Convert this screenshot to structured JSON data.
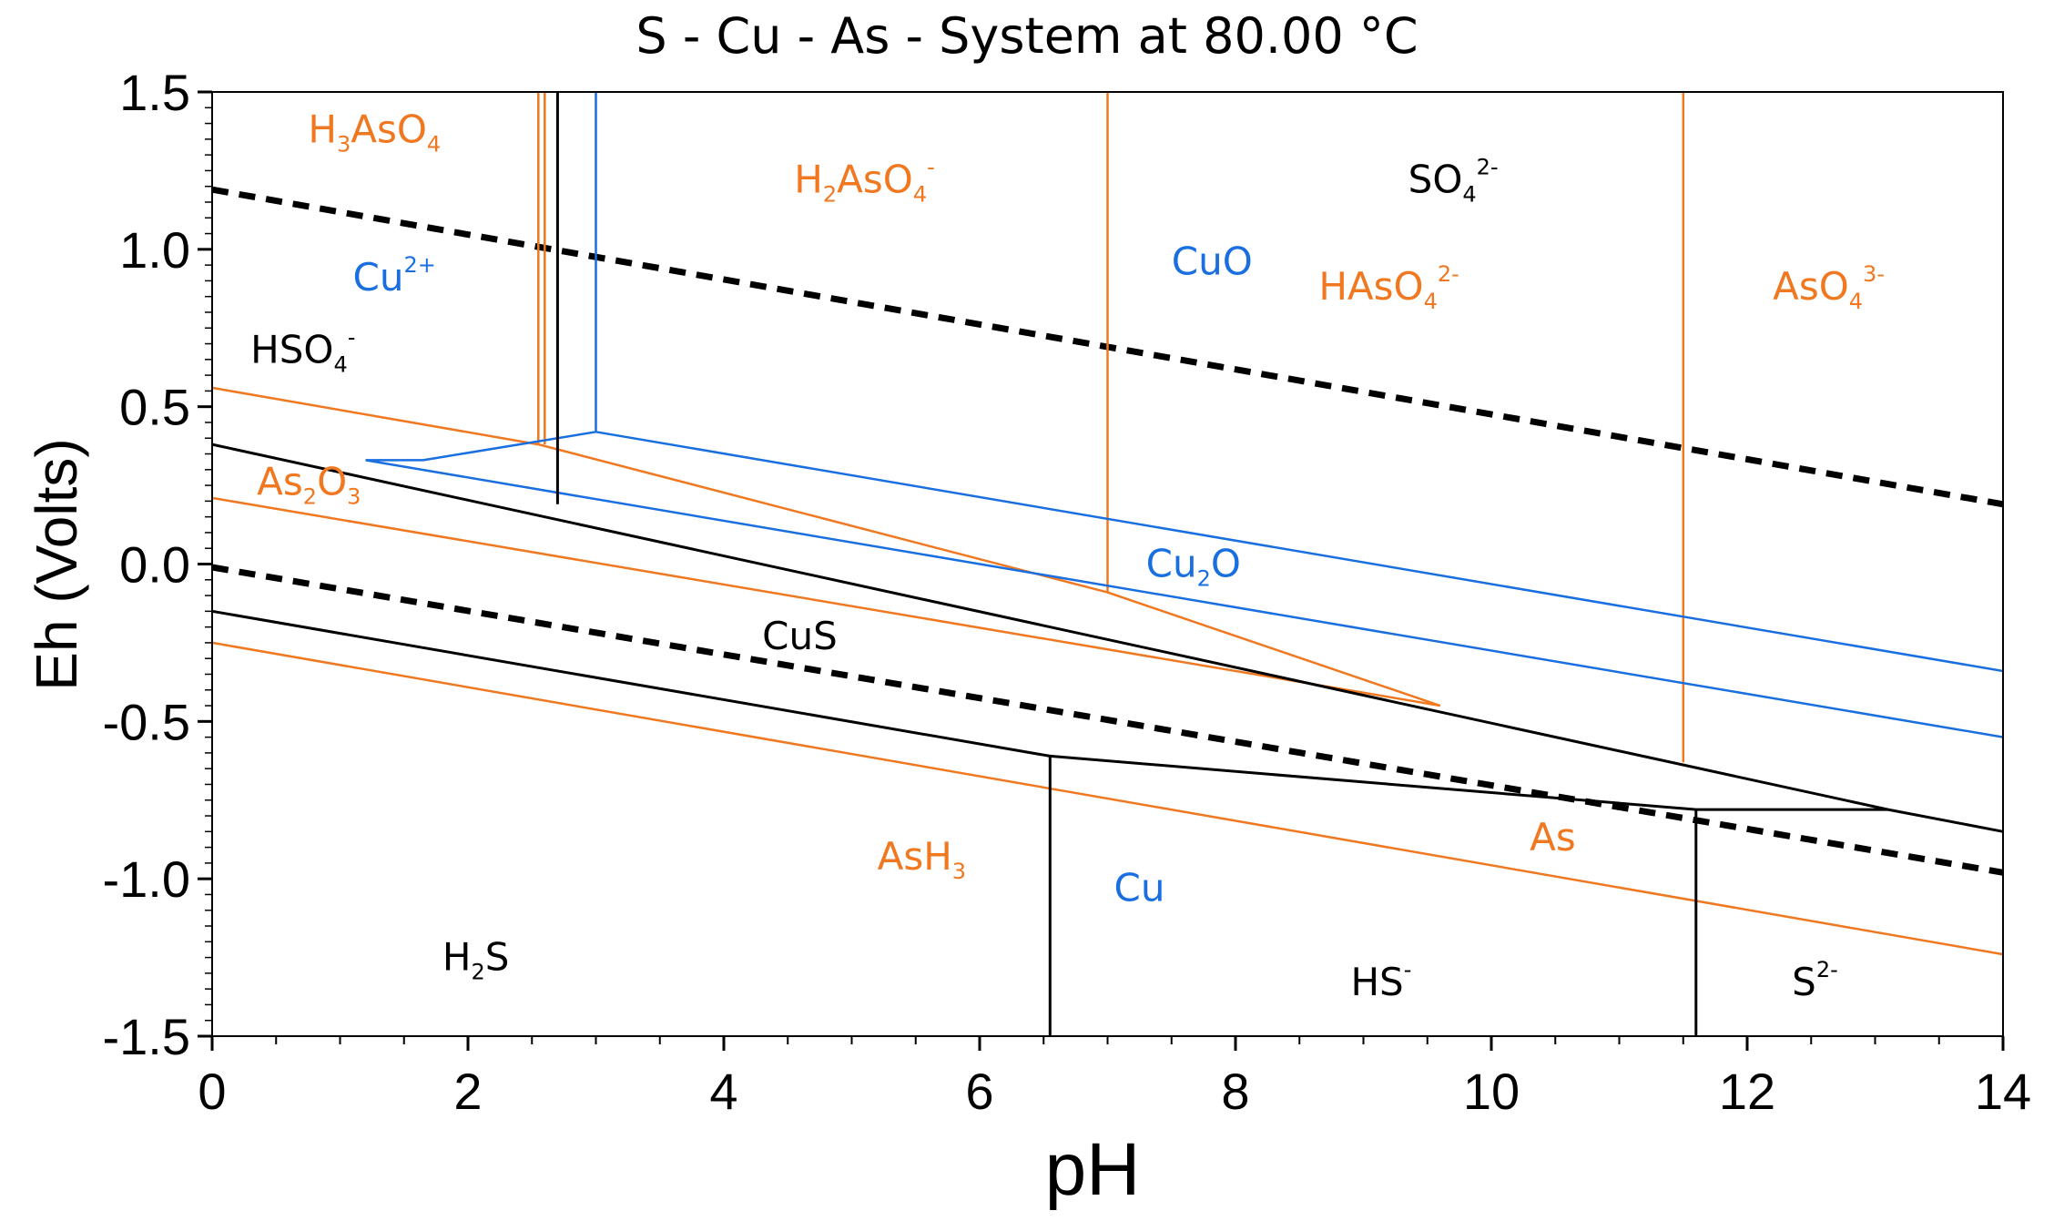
{
  "chart_data": {
    "type": "line",
    "title": "S - Cu - As - System at 80.00 °C",
    "xlabel": "pH",
    "ylabel": "Eh (Volts)",
    "xlim": [
      0,
      14
    ],
    "ylim": [
      -1.5,
      1.5
    ],
    "x_ticks": [
      0,
      2,
      4,
      6,
      8,
      10,
      12,
      14
    ],
    "y_ticks": [
      -1.5,
      -1.0,
      -0.5,
      0.0,
      0.5,
      1.0,
      1.5
    ],
    "x_tick_labels": [
      "0",
      "2",
      "4",
      "6",
      "8",
      "10",
      "12",
      "14"
    ],
    "y_tick_labels": [
      "-1.5",
      "-1.0",
      "-0.5",
      "0.0",
      "0.5",
      "1.0",
      "1.5"
    ],
    "colors": {
      "arsenic": "#f07820",
      "copper": "#1a6fe0",
      "sulfur": "#000000",
      "water": "#000000"
    },
    "series": [
      {
        "name": "water-upper",
        "group": "water",
        "style": "dashed",
        "points": [
          [
            0,
            1.19
          ],
          [
            14,
            0.19
          ]
        ]
      },
      {
        "name": "water-lower",
        "group": "water",
        "style": "dashed",
        "points": [
          [
            0,
            -0.01
          ],
          [
            14,
            -0.98
          ]
        ]
      },
      {
        "name": "as-h3aso4-h2aso4-a",
        "group": "arsenic",
        "points": [
          [
            2.55,
            1.5
          ],
          [
            2.55,
            0.38
          ]
        ]
      },
      {
        "name": "as-h3aso4-h2aso4-b",
        "group": "arsenic",
        "points": [
          [
            2.6,
            1.5
          ],
          [
            2.6,
            0.38
          ]
        ]
      },
      {
        "name": "as-h2aso4-haso4",
        "group": "arsenic",
        "points": [
          [
            7.0,
            1.5
          ],
          [
            7.0,
            -0.09
          ]
        ]
      },
      {
        "name": "as-haso4-aso4",
        "group": "arsenic",
        "points": [
          [
            11.5,
            1.5
          ],
          [
            11.5,
            -0.63
          ]
        ]
      },
      {
        "name": "as-as5-as2o3",
        "group": "arsenic",
        "points": [
          [
            0,
            0.56
          ],
          [
            2.55,
            0.38
          ],
          [
            7.0,
            -0.09
          ],
          [
            9.6,
            -0.45
          ]
        ]
      },
      {
        "name": "as-as2o3-as",
        "group": "arsenic",
        "points": [
          [
            0,
            0.21
          ],
          [
            9.6,
            -0.45
          ]
        ]
      },
      {
        "name": "as-as-ash3",
        "group": "arsenic",
        "points": [
          [
            0,
            -0.25
          ],
          [
            14,
            -1.24
          ]
        ]
      },
      {
        "name": "cu-cu2-cuo",
        "group": "copper",
        "points": [
          [
            3.0,
            1.5
          ],
          [
            3.0,
            0.42
          ]
        ]
      },
      {
        "name": "cu-cu2-lower",
        "group": "copper",
        "points": [
          [
            1.2,
            0.33
          ],
          [
            1.65,
            0.33
          ],
          [
            3.0,
            0.42
          ]
        ]
      },
      {
        "name": "cu-cuo-cu2o",
        "group": "copper",
        "points": [
          [
            3.0,
            0.42
          ],
          [
            14,
            -0.34
          ]
        ]
      },
      {
        "name": "cu-cu2o-lower",
        "group": "copper",
        "points": [
          [
            1.2,
            0.33
          ],
          [
            14,
            -0.55
          ]
        ]
      },
      {
        "name": "s-hso4-so4",
        "group": "sulfur",
        "points": [
          [
            2.7,
            1.5
          ],
          [
            2.7,
            0.19
          ]
        ]
      },
      {
        "name": "s-sulfate-cus",
        "group": "sulfur",
        "points": [
          [
            0,
            0.38
          ],
          [
            13.1,
            -0.78
          ],
          [
            14,
            -0.85
          ]
        ]
      },
      {
        "name": "s-cus-cu",
        "group": "sulfur",
        "points": [
          [
            0,
            -0.15
          ],
          [
            6.55,
            -0.61
          ],
          [
            11.6,
            -0.78
          ],
          [
            13.1,
            -0.78
          ]
        ]
      },
      {
        "name": "s-h2s-hs",
        "group": "sulfur",
        "points": [
          [
            6.55,
            -0.61
          ],
          [
            6.55,
            -1.5
          ]
        ]
      },
      {
        "name": "s-hs-s2",
        "group": "sulfur",
        "points": [
          [
            11.6,
            -0.78
          ],
          [
            11.6,
            -1.5
          ]
        ]
      }
    ],
    "labels": [
      {
        "base": "H",
        "sub": "3",
        "mid": "AsO",
        "sub2": "4",
        "sup": "",
        "group": "arsenic",
        "pos": [
          0.75,
          1.34
        ]
      },
      {
        "base": "H",
        "sub": "2",
        "mid": "AsO",
        "sub2": "4",
        "sup": "-",
        "group": "arsenic",
        "pos": [
          4.55,
          1.18
        ]
      },
      {
        "base": "SO",
        "sub": "4",
        "mid": "",
        "sub2": "",
        "sup": "2-",
        "group": "sulfur",
        "pos": [
          9.35,
          1.18
        ]
      },
      {
        "base": "Cu",
        "sub": "",
        "mid": "",
        "sub2": "",
        "sup": "2+",
        "group": "copper",
        "pos": [
          1.1,
          0.87
        ]
      },
      {
        "base": "CuO",
        "sub": "",
        "mid": "",
        "sub2": "",
        "sup": "",
        "group": "copper",
        "pos": [
          7.5,
          0.92
        ]
      },
      {
        "base": "HAsO",
        "sub": "4",
        "mid": "",
        "sub2": "",
        "sup": "2-",
        "group": "arsenic",
        "pos": [
          8.65,
          0.84
        ]
      },
      {
        "base": "AsO",
        "sub": "4",
        "mid": "",
        "sub2": "",
        "sup": "3-",
        "group": "arsenic",
        "pos": [
          12.2,
          0.84
        ]
      },
      {
        "base": "HSO",
        "sub": "4",
        "mid": "",
        "sub2": "",
        "sup": "-",
        "group": "sulfur",
        "pos": [
          0.3,
          0.64
        ]
      },
      {
        "base": "As",
        "sub": "2",
        "mid": "O",
        "sub2": "3",
        "sup": "",
        "group": "arsenic",
        "pos": [
          0.35,
          0.22
        ]
      },
      {
        "base": "Cu",
        "sub": "2",
        "mid": "O",
        "sub2": "",
        "sup": "",
        "group": "copper",
        "pos": [
          7.3,
          -0.04
        ]
      },
      {
        "base": "CuS",
        "sub": "",
        "mid": "",
        "sub2": "",
        "sup": "",
        "group": "sulfur",
        "pos": [
          4.3,
          -0.27
        ]
      },
      {
        "base": "AsH",
        "sub": "3",
        "mid": "",
        "sub2": "",
        "sup": "",
        "group": "arsenic",
        "pos": [
          5.2,
          -0.97
        ]
      },
      {
        "base": "As",
        "sub": "",
        "mid": "",
        "sub2": "",
        "sup": "",
        "group": "arsenic",
        "pos": [
          10.3,
          -0.91
        ]
      },
      {
        "base": "Cu",
        "sub": "",
        "mid": "",
        "sub2": "",
        "sup": "",
        "group": "copper",
        "pos": [
          7.05,
          -1.07
        ]
      },
      {
        "base": "H",
        "sub": "2",
        "mid": "S",
        "sub2": "",
        "sup": "",
        "group": "sulfur",
        "pos": [
          1.8,
          -1.29
        ]
      },
      {
        "base": "HS",
        "sub": "",
        "mid": "",
        "sub2": "",
        "sup": "-",
        "group": "sulfur",
        "pos": [
          8.9,
          -1.37
        ]
      },
      {
        "base": "S",
        "sub": "",
        "mid": "",
        "sub2": "",
        "sup": "2-",
        "group": "sulfur",
        "pos": [
          12.35,
          -1.37
        ]
      }
    ]
  }
}
